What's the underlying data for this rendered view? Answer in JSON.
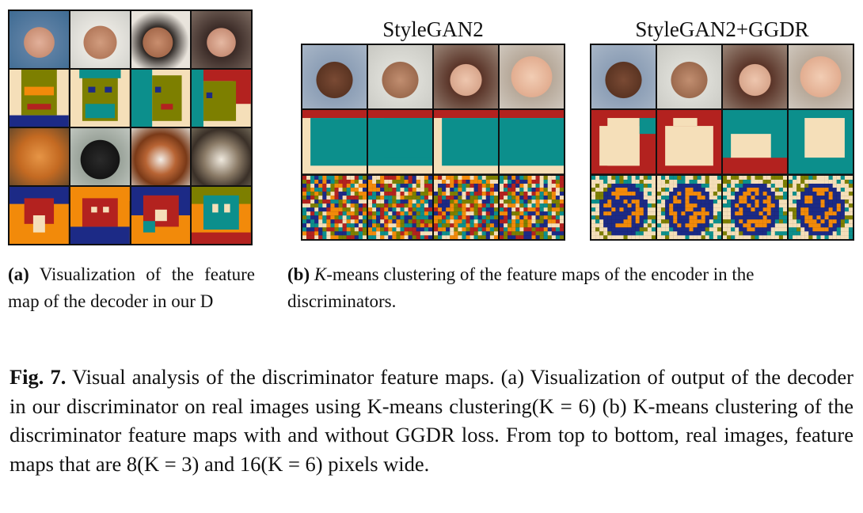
{
  "panel_b": {
    "heading_left": "StyleGAN2",
    "heading_right": "StyleGAN2+GGDR"
  },
  "caption_a": {
    "label": "(a)",
    "text": "Visualization of the feature map of the decoder in our D"
  },
  "caption_b": {
    "label": "(b)",
    "text_k": "K",
    "text": "-means clustering of the feature maps of the encoder in the discriminators."
  },
  "figure_caption": {
    "label": "Fig. 7.",
    "text": "Visual analysis of the discriminator feature maps. (a) Visualization of output of the decoder in our discriminator on real images using K-means clustering(K = 6) (b) K-means clustering of the discriminator feature maps with and without GGDR loss. From top to bottom, real images, feature maps that are 8(K = 3) and 16(K = 6) pixels wide."
  },
  "palette": {
    "navy": "#1c2a86",
    "teal": "#0c8f8c",
    "olive": "#7d7f00",
    "red": "#b3221f",
    "orange": "#f28a0a",
    "cream": "#f5dfb9"
  }
}
